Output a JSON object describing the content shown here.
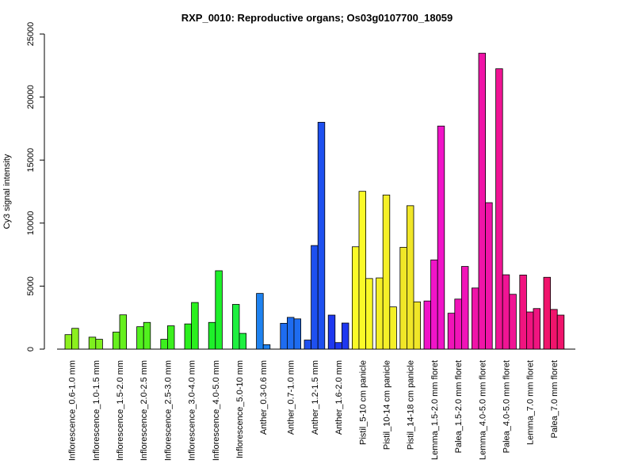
{
  "chart_data": {
    "type": "bar",
    "title": "RXP_0010: Reproductive organs; Os03g0107700_18059",
    "xlabel": "",
    "ylabel": "Cy3 signal intensity",
    "ylim": [
      0,
      25000
    ],
    "yticks": [
      0,
      5000,
      10000,
      15000,
      20000,
      25000
    ],
    "grid": false,
    "legend": "none",
    "categories": [
      "Inflorescence_0.6-1.0 mm",
      "Inflorescence_1.0-1.5 mm",
      "Inflorescence_1.5-2.0 mm",
      "Inflorescence_2.0-2.5 mm",
      "Inflorescence_2.5-3.0 mm",
      "Inflorescence_3.0-4.0 mm",
      "Inflorescence_4.0-5.0 mm",
      "Inflorescence_5.0-10 mm",
      "Anther_0.3-0.6 mm",
      "Anther_0.7-1.0 mm",
      "Anther_1.2-1.5 mm",
      "Anther_1.6-2.0 mm",
      "Pistil_5-10 cm panicle",
      "Pistil_10-14 cm panicle",
      "Pistil_14-18 cm panicle",
      "Lemma_1.5-2.0 mm floret",
      "Palea_1.5-2.0 mm floret",
      "Lemma_4.0-5.0 mm floret",
      "Palea_4.0-5.0 mm floret",
      "Lemma_7.0 mm floret",
      "Palea_7.0 mm floret"
    ],
    "groups": [
      {
        "color": "#8cf01e",
        "values": [
          1150,
          1650
        ]
      },
      {
        "color": "#7ef01e",
        "values": [
          950,
          780
        ]
      },
      {
        "color": "#66f01e",
        "values": [
          1350,
          2720
        ]
      },
      {
        "color": "#52f01e",
        "values": [
          1780,
          2120
        ]
      },
      {
        "color": "#3cf01e",
        "values": [
          780,
          1850
        ]
      },
      {
        "color": "#2bf01e",
        "values": [
          2000,
          3700
        ]
      },
      {
        "color": "#1ef02a",
        "values": [
          2120,
          6220
        ]
      },
      {
        "color": "#1ef040",
        "values": [
          3550,
          1250
        ]
      },
      {
        "color": "#1e82f0",
        "values": [
          4420,
          350
        ]
      },
      {
        "color": "#1e6cf0",
        "values": [
          2050,
          2520,
          2400
        ]
      },
      {
        "color": "#1e50f0",
        "values": [
          720,
          8220,
          18000
        ]
      },
      {
        "color": "#1e38f0",
        "values": [
          2700,
          520,
          2070
        ]
      },
      {
        "color": "#fafa28",
        "values": [
          8120,
          12520,
          5600
        ]
      },
      {
        "color": "#f5f028",
        "values": [
          5650,
          12230,
          3350
        ]
      },
      {
        "color": "#f0e628",
        "values": [
          8080,
          11380,
          3750
        ]
      },
      {
        "color": "#f014c8",
        "values": [
          3820,
          7080,
          17700
        ]
      },
      {
        "color": "#f014b8",
        "values": [
          2850,
          3970,
          6560
        ]
      },
      {
        "color": "#f014a8",
        "values": [
          4850,
          23480,
          11620
        ]
      },
      {
        "color": "#f01494",
        "values": [
          22250,
          5900,
          4350
        ]
      },
      {
        "color": "#f01480",
        "values": [
          5880,
          2950,
          3220
        ]
      },
      {
        "color": "#f0146c",
        "values": [
          5700,
          3150,
          2700
        ]
      }
    ]
  }
}
